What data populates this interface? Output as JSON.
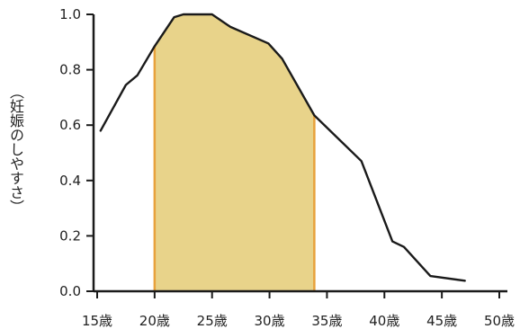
{
  "chart_data": {
    "type": "line",
    "title": "",
    "xlabel": "",
    "ylabel": "（妊娠のしやすさ）",
    "xlim": [
      14.5,
      51
    ],
    "ylim": [
      0,
      1.0
    ],
    "grid": false,
    "x_ticks": [
      15,
      20,
      25,
      30,
      35,
      40,
      45,
      50
    ],
    "x_tick_labels": [
      "15歳",
      "20歳",
      "25歳",
      "30歳",
      "35歳",
      "40歳",
      "45歳",
      "50歳"
    ],
    "y_ticks": [
      0.0,
      0.2,
      0.4,
      0.6,
      0.8,
      1.0
    ],
    "y_tick_labels": [
      "0.0",
      "0.2",
      "0.4",
      "0.6",
      "0.8",
      "1.0"
    ],
    "series": [
      {
        "values": [
          {
            "x": 15.3,
            "y": 0.58
          },
          {
            "x": 17.5,
            "y": 0.745
          },
          {
            "x": 18.5,
            "y": 0.78
          },
          {
            "x": 20.0,
            "y": 0.885
          },
          {
            "x": 21.7,
            "y": 0.99
          },
          {
            "x": 22.5,
            "y": 1.0
          },
          {
            "x": 25.0,
            "y": 1.0
          },
          {
            "x": 26.6,
            "y": 0.955
          },
          {
            "x": 29.9,
            "y": 0.895
          },
          {
            "x": 31.1,
            "y": 0.84
          },
          {
            "x": 33.9,
            "y": 0.635
          },
          {
            "x": 38.0,
            "y": 0.47
          },
          {
            "x": 40.7,
            "y": 0.18
          },
          {
            "x": 41.7,
            "y": 0.16
          },
          {
            "x": 44.0,
            "y": 0.055
          },
          {
            "x": 47.0,
            "y": 0.038
          }
        ]
      }
    ],
    "highlight": {
      "x_range": [
        20.0,
        33.9
      ],
      "fill_color": "#e8d38a",
      "edge_color": "#e8a23c"
    },
    "colors": {
      "line": "#1a1a1a",
      "axis": "#1a1a1a"
    }
  }
}
